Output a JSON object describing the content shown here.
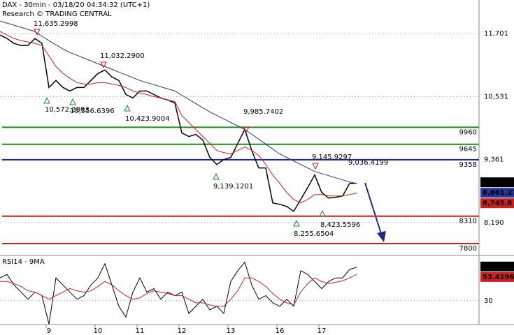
{
  "chart_data": [
    {
      "type": "line",
      "title": "DAX - 30min - 03/18/20 04:34:32 (UTC+1)",
      "subtitle": "Research © TRADING CENTRAL",
      "ylim": [
        7580,
        12325
      ],
      "yticks": [
        {
          "value": 11701,
          "label": "11,701"
        },
        {
          "value": 10531,
          "label": "10,531"
        },
        {
          "value": 9361,
          "label": "9,361"
        },
        {
          "value": 8190,
          "label": "8,190"
        }
      ],
      "grid": true,
      "series": [
        {
          "name": "DAX",
          "color": "#000000",
          "last": {
            "value": 8939.1,
            "label": "8,939.1"
          },
          "values": [
            11675,
            11610,
            11519,
            11480,
            11480,
            11610,
            11519,
            10700,
            10830,
            10700,
            10635,
            10700,
            10700,
            10830,
            10960,
            11025,
            10895,
            10830,
            10570,
            10505,
            10635,
            10635,
            10570,
            10505,
            10466,
            10414,
            9855,
            9790,
            9829,
            9725,
            9400,
            9270,
            9361,
            9400,
            9660,
            9920,
            9530,
            9205,
            9205,
            8555,
            8529,
            8490,
            8399,
            8620,
            8841,
            9075,
            8750,
            8646,
            8659,
            8685,
            8919,
            8919
          ]
        },
        {
          "name": "MA slow",
          "color": "#2b3598",
          "last": {
            "value": 8861.27,
            "label": "8,861.27"
          },
          "values": [
            11935,
            11896,
            11857,
            11818,
            11779,
            11740,
            11649,
            11571,
            11493,
            11415,
            11350,
            11298,
            11246,
            11194,
            11142,
            11090,
            11038,
            10986,
            10934,
            10882,
            10830,
            10791,
            10752,
            10713,
            10674,
            10635,
            10557,
            10479,
            10401,
            10323,
            10245,
            10180,
            10115,
            10050,
            9985,
            9920,
            9829,
            9738,
            9647,
            9556,
            9465,
            9400,
            9335,
            9270,
            9205,
            9140,
            9101,
            9062,
            9023,
            8984,
            8945,
            8919
          ]
        },
        {
          "name": "MA fast",
          "color": "#cc2020",
          "last": {
            "value": 8745.8,
            "label": "8,745.8"
          },
          "values": [
            11740,
            11675,
            11610,
            11571,
            11545,
            11519,
            11480,
            11285,
            11090,
            10960,
            10869,
            10791,
            10765,
            10765,
            10791,
            10791,
            10765,
            10739,
            10700,
            10635,
            10596,
            10570,
            10531,
            10505,
            10466,
            10440,
            10180,
            10050,
            9920,
            9790,
            9660,
            9530,
            9491,
            9465,
            9530,
            9595,
            9530,
            9439,
            9270,
            9075,
            8919,
            8750,
            8620,
            8555,
            8620,
            8711,
            8711,
            8685,
            8685,
            8685,
            8711,
            8737
          ]
        }
      ],
      "levels": [
        {
          "value": 9960,
          "color": "#1e8c1e"
        },
        {
          "value": 9645,
          "color": "#1e8c1e"
        },
        {
          "value": 9358,
          "color": "#1f2a80"
        },
        {
          "value": 8310,
          "color": "#cc1f1f"
        },
        {
          "value": 7800,
          "color": "#cc1f1f"
        }
      ],
      "annotations": [
        "11,635.2998",
        "11,032.2900",
        "10,572.2803",
        "10,556.6396",
        "10,423.9004",
        "9,985.7402",
        "9,139.1201",
        "9,145.9297",
        "9,036.4199",
        "8,423.5596",
        "8,255.6504"
      ]
    },
    {
      "type": "line",
      "title": "RSI14 - 9MA",
      "ylim": [
        11,
        66
      ],
      "yticks": [
        30
      ],
      "grid": true,
      "categories": [
        null,
        null,
        null,
        null,
        null,
        null,
        null,
        "9",
        null,
        null,
        null,
        null,
        null,
        null,
        "10",
        null,
        null,
        null,
        null,
        null,
        "11",
        null,
        null,
        null,
        null,
        null,
        "12",
        null,
        null,
        null,
        null,
        null,
        null,
        "13",
        null,
        null,
        null,
        null,
        null,
        null,
        "16",
        null,
        null,
        null,
        null,
        null,
        "17",
        null,
        null,
        null,
        null,
        null
      ],
      "series": [
        {
          "name": "RSI14",
          "color": "#000000",
          "last": 57.1664,
          "values": [
            48.1,
            50.9,
            42.5,
            36.8,
            31.1,
            36.8,
            34.0,
            11.3,
            48.1,
            42.5,
            36.8,
            31.1,
            34.0,
            42.5,
            48.1,
            59.4,
            42.5,
            25.5,
            17.0,
            36.8,
            48.1,
            36.8,
            39.6,
            31.1,
            36.8,
            34.0,
            36.8,
            19.8,
            25.5,
            31.1,
            22.6,
            25.5,
            19.8,
            45.3,
            53.8,
            60.6,
            42.5,
            31.1,
            34.0,
            28.3,
            25.5,
            31.1,
            25.5,
            53.8,
            50.9,
            45.3,
            39.6,
            45.3,
            48.1,
            48.1,
            54.9,
            56.6
          ]
        },
        {
          "name": "9MA",
          "color": "#cc2020",
          "last": 53.4196,
          "values": [
            45.3,
            45.3,
            43.6,
            41.3,
            37.9,
            36.8,
            34.0,
            31.1,
            34.0,
            36.8,
            39.6,
            37.9,
            36.8,
            37.9,
            41.3,
            45.3,
            42.5,
            37.9,
            34.0,
            31.1,
            32.3,
            35.7,
            37.9,
            36.8,
            35.7,
            34.0,
            34.0,
            31.1,
            28.3,
            28.3,
            26.6,
            25.5,
            25.5,
            31.1,
            37.9,
            48.1,
            48.1,
            45.3,
            41.3,
            35.7,
            31.1,
            28.3,
            26.6,
            36.8,
            43.6,
            48.1,
            45.3,
            43.6,
            44.7,
            45.8,
            48.1,
            50.9
          ]
        }
      ]
    }
  ]
}
